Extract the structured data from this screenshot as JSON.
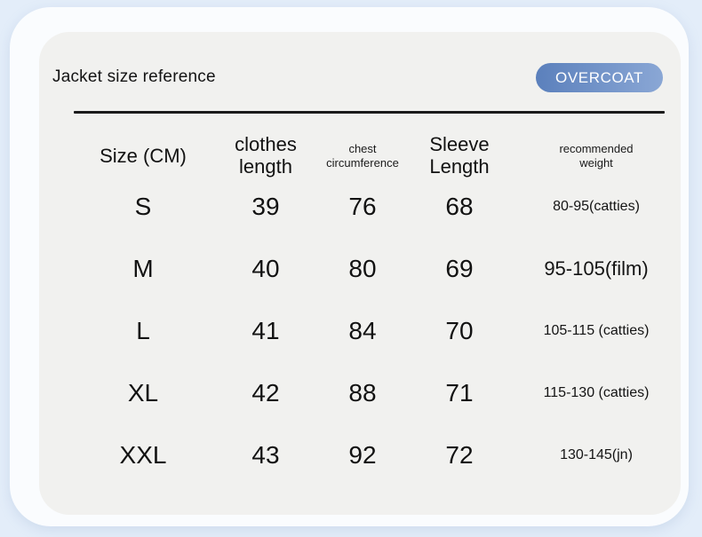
{
  "page": {
    "title": "Jacket size reference",
    "badge": "OVERCOAT"
  },
  "colors": {
    "page_bg": "#e3edf9",
    "panel_bg": "#fafcfe",
    "card_bg": "#f1f1ef",
    "text": "#161616",
    "badge_gradient_start": "#5b80bc",
    "badge_gradient_end": "#8aa7d5",
    "badge_text": "#ffffff",
    "divider": "#1b1b1b"
  },
  "table": {
    "headers": [
      {
        "line1": "Size (CM)",
        "line2": ""
      },
      {
        "line1": "clothes",
        "line2": "length"
      },
      {
        "line1": "chest",
        "line2": "circumference"
      },
      {
        "line1": "Sleeve",
        "line2": "Length"
      },
      {
        "line1": "recommended",
        "line2": "weight"
      }
    ],
    "rows": [
      {
        "size": "S",
        "clothes_length": "39",
        "chest": "76",
        "sleeve": "68",
        "weight": "80-95(catties)"
      },
      {
        "size": "M",
        "clothes_length": "40",
        "chest": "80",
        "sleeve": "69",
        "weight": "95-105(film)"
      },
      {
        "size": "L",
        "clothes_length": "41",
        "chest": "84",
        "sleeve": "70",
        "weight": "105-115 (catties)"
      },
      {
        "size": "XL",
        "clothes_length": "42",
        "chest": "88",
        "sleeve": "71",
        "weight": "115-130 (catties)"
      },
      {
        "size": "XXL",
        "clothes_length": "43",
        "chest": "92",
        "sleeve": "72",
        "weight": "130-145(jn)"
      }
    ]
  },
  "chart_data": {
    "type": "table",
    "title": "Jacket size reference",
    "badge": "OVERCOAT",
    "columns": [
      "Size (CM)",
      "clothes length",
      "chest circumference",
      "Sleeve Length",
      "recommended weight"
    ],
    "units": "CM",
    "rows": [
      [
        "S",
        39,
        76,
        68,
        "80-95(catties)"
      ],
      [
        "M",
        40,
        80,
        69,
        "95-105(film)"
      ],
      [
        "L",
        41,
        84,
        70,
        "105-115 (catties)"
      ],
      [
        "XL",
        42,
        88,
        71,
        "115-130 (catties)"
      ],
      [
        "XXL",
        43,
        92,
        72,
        "130-145(jn)"
      ]
    ]
  }
}
